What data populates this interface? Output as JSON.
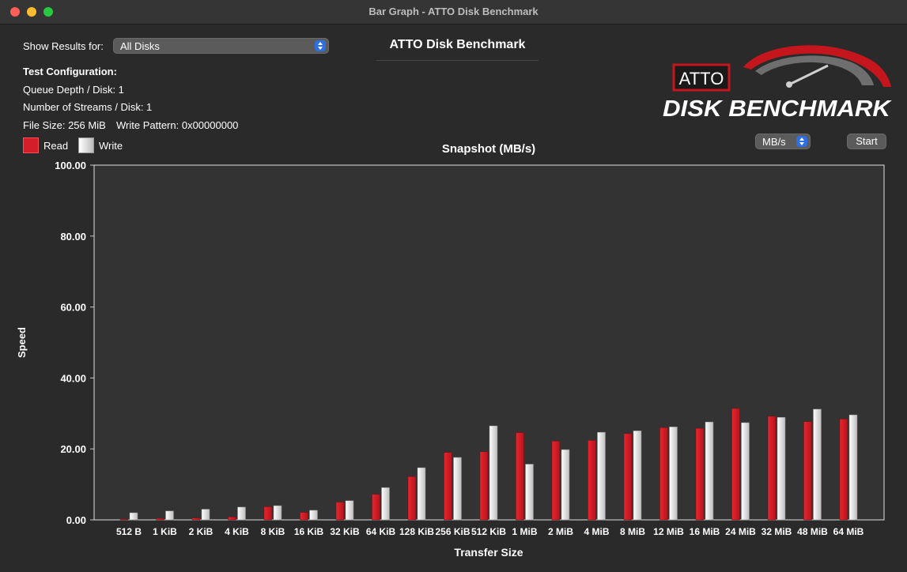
{
  "window": {
    "title": "Bar Graph - ATTO Disk Benchmark"
  },
  "controls": {
    "show_results_label": "Show Results for:",
    "show_results_value": "All Disks",
    "units_value": "MB/s",
    "start_label": "Start"
  },
  "header": {
    "title": "ATTO Disk Benchmark"
  },
  "config": {
    "heading": "Test Configuration:",
    "queue_depth": "Queue Depth / Disk: 1",
    "streams": "Number of Streams / Disk: 1",
    "file_size": "File Size: 256 MiB",
    "write_pattern": "Write Pattern: 0x00000000"
  },
  "legend": {
    "read": "Read",
    "write": "Write"
  },
  "logo": {
    "top": "ATTO",
    "bottom": "DISK BENCHMARK"
  },
  "colors": {
    "read": "#d41f2a",
    "write": "#e6e6e6",
    "plot_bg": "#333333"
  },
  "chart_data": {
    "type": "bar",
    "title": "Snapshot (MB/s)",
    "xlabel": "Transfer Size",
    "ylabel": "Speed",
    "ylim": [
      0,
      100
    ],
    "yticks": [
      "0.00",
      "20.00",
      "40.00",
      "60.00",
      "80.00",
      "100.00"
    ],
    "categories": [
      "512 B",
      "1 KiB",
      "2 KiB",
      "4 KiB",
      "8 KiB",
      "16 KiB",
      "32 KiB",
      "64 KiB",
      "128 KiB",
      "256 KiB",
      "512 KiB",
      "1 MiB",
      "2 MiB",
      "4 MiB",
      "8 MiB",
      "12 MiB",
      "16 MiB",
      "24 MiB",
      "32 MiB",
      "48 MiB",
      "64 MiB"
    ],
    "series": [
      {
        "name": "Read",
        "values": [
          0.2,
          0.4,
          0.5,
          0.8,
          3.7,
          2.1,
          5.0,
          7.2,
          12.2,
          19.0,
          19.2,
          24.6,
          22.2,
          22.4,
          24.3,
          26.0,
          25.8,
          31.4,
          29.2,
          27.7,
          28.4
        ]
      },
      {
        "name": "Write",
        "values": [
          2.0,
          2.5,
          3.0,
          3.6,
          4.0,
          2.7,
          5.4,
          9.1,
          14.7,
          17.6,
          26.5,
          15.7,
          19.8,
          24.7,
          25.1,
          26.2,
          27.6,
          27.4,
          28.9,
          31.2,
          29.6
        ]
      }
    ]
  }
}
